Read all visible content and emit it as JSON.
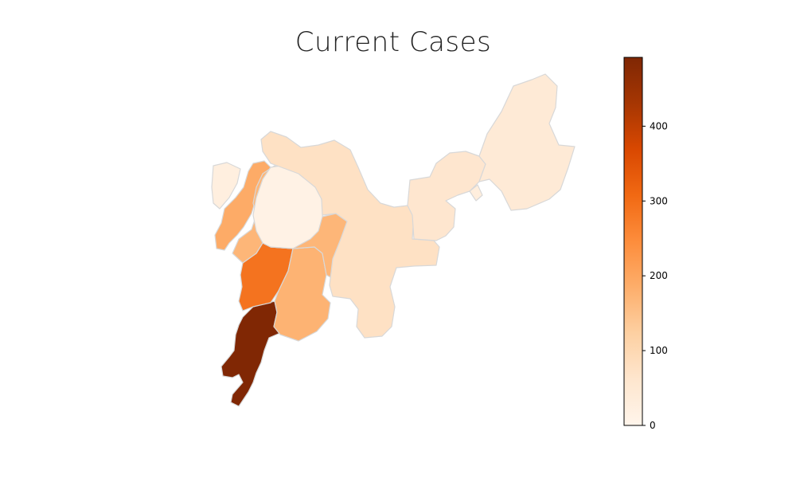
{
  "title": "Current Cases",
  "colorbar": {
    "min": 0,
    "max": 492,
    "ticks": [
      0,
      100,
      200,
      300,
      400
    ],
    "colormap": "Oranges",
    "color_low": "#fff5eb",
    "color_high": "#7f2704"
  },
  "chart_data": {
    "type": "choropleth",
    "title": "Current Cases",
    "value_range": [
      0,
      492
    ],
    "regions": [
      {
        "name": "",
        "value": 490
      },
      {
        "name": "",
        "value": 290
      },
      {
        "name": "",
        "value": 175
      },
      {
        "name": "",
        "value": 190
      },
      {
        "name": "",
        "value": 170
      },
      {
        "name": "",
        "value": 25
      },
      {
        "name": "",
        "value": 12
      },
      {
        "name": "",
        "value": 75
      },
      {
        "name": "",
        "value": 60
      },
      {
        "name": "",
        "value": 45
      },
      {
        "name": "",
        "value": 30
      }
    ]
  }
}
